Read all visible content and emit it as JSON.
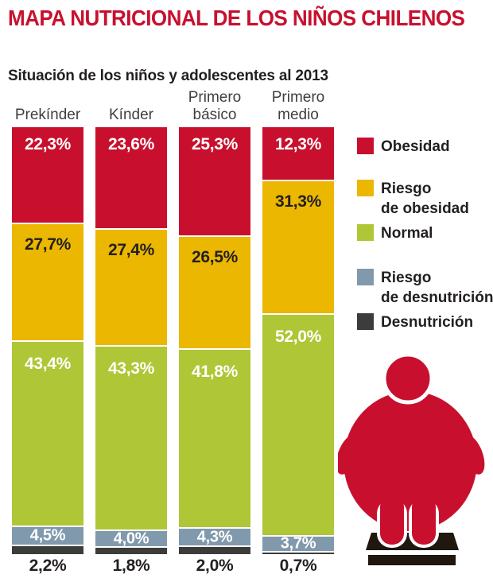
{
  "chart_data": {
    "type": "bar",
    "variant": "stacked-column",
    "title": "MAPA NUTRICIONAL DE LOS NIÑOS CHILENOS",
    "title_color": "#C8102E",
    "subtitle": "Situación de los niños y adolescentes al 2013",
    "unit": "%",
    "grid": false,
    "ylim": [
      0,
      100
    ],
    "legend_position": "right",
    "categories": [
      "Prekínder",
      "Kínder",
      "Primero básico",
      "Primero medio"
    ],
    "categories_lines": [
      [
        "Prekínder"
      ],
      [
        "Kínder"
      ],
      [
        "Primero",
        "básico"
      ],
      [
        "Primero",
        "medio"
      ]
    ],
    "series": [
      {
        "name": "Obesidad",
        "color": "#C8102E",
        "values": [
          22.3,
          23.6,
          25.3,
          12.3
        ],
        "labels": [
          "22,3%",
          "23,6%",
          "25,3%",
          "12,3%"
        ],
        "label_color": "#FFFFFF",
        "label_pos": "top"
      },
      {
        "name": "Riesgo de obesidad",
        "color": "#EBB700",
        "values": [
          27.7,
          27.4,
          26.5,
          31.3
        ],
        "labels": [
          "27,7%",
          "27,4%",
          "26,5%",
          "31,3%"
        ],
        "label_color": "#231F20",
        "label_pos": "top"
      },
      {
        "name": "Normal",
        "color": "#AFC636",
        "values": [
          43.4,
          43.3,
          41.8,
          52.0
        ],
        "labels": [
          "43,4%",
          "43,3%",
          "41,8%",
          "52,0%"
        ],
        "label_color": "#FFFFFF",
        "label_pos": "top"
      },
      {
        "name": "Riesgo de desnutrición",
        "color": "#8199AD",
        "values": [
          4.5,
          4.0,
          4.3,
          3.7
        ],
        "labels": [
          "4,5%",
          "4,0%",
          "4,3%",
          "3,7%"
        ],
        "label_color": "#FFFFFF",
        "label_pos": "center"
      },
      {
        "name": "Desnutrición",
        "color": "#3C3C3B",
        "values": [
          2.2,
          1.8,
          2.0,
          0.7
        ],
        "labels": [
          "2,2%",
          "1,8%",
          "2,0%",
          "0,7%"
        ],
        "label_color": "#231F20",
        "label_pos": "below"
      }
    ]
  },
  "legend": {
    "items": [
      {
        "swatch_color": "#C8102E",
        "lines": [
          "Obesidad"
        ]
      },
      {
        "swatch_color": "#EBB700",
        "lines": [
          "Riesgo",
          "de obesidad"
        ]
      },
      {
        "swatch_color": "#AFC636",
        "lines": [
          "Normal"
        ]
      },
      {
        "swatch_color": "#8199AD",
        "lines": [
          "Riesgo",
          "de desnutrición"
        ]
      },
      {
        "swatch_color": "#3C3C3B",
        "lines": [
          "Desnutrición"
        ]
      }
    ]
  },
  "icon": {
    "name": "obese-person-on-scale",
    "person_color": "#C8102E",
    "scale_color": "#20170E"
  }
}
